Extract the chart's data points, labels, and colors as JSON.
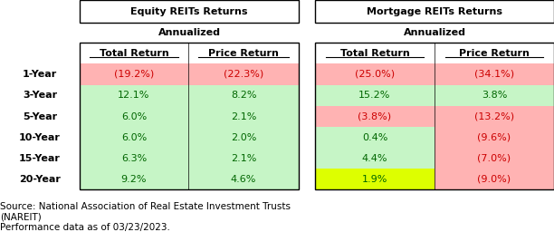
{
  "row_labels": [
    "1-Year",
    "3-Year",
    "5-Year",
    "10-Year",
    "15-Year",
    "20-Year"
  ],
  "equity_total": [
    "(19.2%)",
    "12.1%",
    "6.0%",
    "6.0%",
    "6.3%",
    "9.2%"
  ],
  "equity_price": [
    "(22.3%)",
    "8.2%",
    "2.1%",
    "2.0%",
    "2.1%",
    "4.6%"
  ],
  "mortgage_total": [
    "(25.0%)",
    "15.2%",
    "(3.8%)",
    "0.4%",
    "4.4%",
    "1.9%"
  ],
  "mortgage_price": [
    "(34.1%)",
    "3.8%",
    "(13.2%)",
    "(9.6%)",
    "(7.0%)",
    "(9.0%)"
  ],
  "equity_total_colors": [
    "#ffb3b3",
    "#c6f5c6",
    "#c6f5c6",
    "#c6f5c6",
    "#c6f5c6",
    "#c6f5c6"
  ],
  "equity_price_colors": [
    "#ffb3b3",
    "#c6f5c6",
    "#c6f5c6",
    "#c6f5c6",
    "#c6f5c6",
    "#c6f5c6"
  ],
  "mortgage_total_colors": [
    "#ffb3b3",
    "#c6f5c6",
    "#ffb3b3",
    "#c6f5c6",
    "#c6f5c6",
    "#ddff00"
  ],
  "mortgage_price_colors": [
    "#ffb3b3",
    "#c6f5c6",
    "#ffb3b3",
    "#ffb3b3",
    "#ffb3b3",
    "#ffb3b3"
  ],
  "source_text": "Source: National Association of Real Estate Investment Trusts\n(NAREIT)\nPerformance data as of 03/23/2023.",
  "bg_color": "#ffffff",
  "neg_color": "#cc0000",
  "pos_color": "#006600",
  "header_box_color": "#ffffff",
  "header_border_color": "#000000"
}
